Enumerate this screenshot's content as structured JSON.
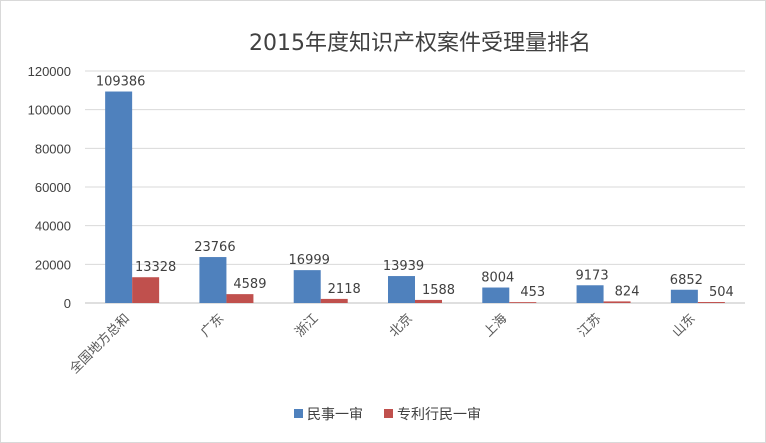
{
  "chart_data": {
    "type": "bar",
    "title": "2015年度知识产权案件受理量排名",
    "xlabel": "",
    "ylabel": "",
    "ylim": [
      0,
      120000
    ],
    "yticks": [
      0,
      20000,
      40000,
      60000,
      80000,
      100000,
      120000
    ],
    "grid": true,
    "legend_position": "bottom",
    "categories": [
      "全国地方总和",
      "广东",
      "浙江",
      "北京",
      "上海",
      "江苏",
      "山东"
    ],
    "series": [
      {
        "name": "民事一审",
        "color": "#4f81bd",
        "values": [
          109386,
          23766,
          16999,
          13939,
          8004,
          9173,
          6852
        ]
      },
      {
        "name": "专利行民一审",
        "color": "#c0504d",
        "values": [
          13328,
          4589,
          2118,
          1588,
          453,
          824,
          504
        ]
      }
    ]
  }
}
